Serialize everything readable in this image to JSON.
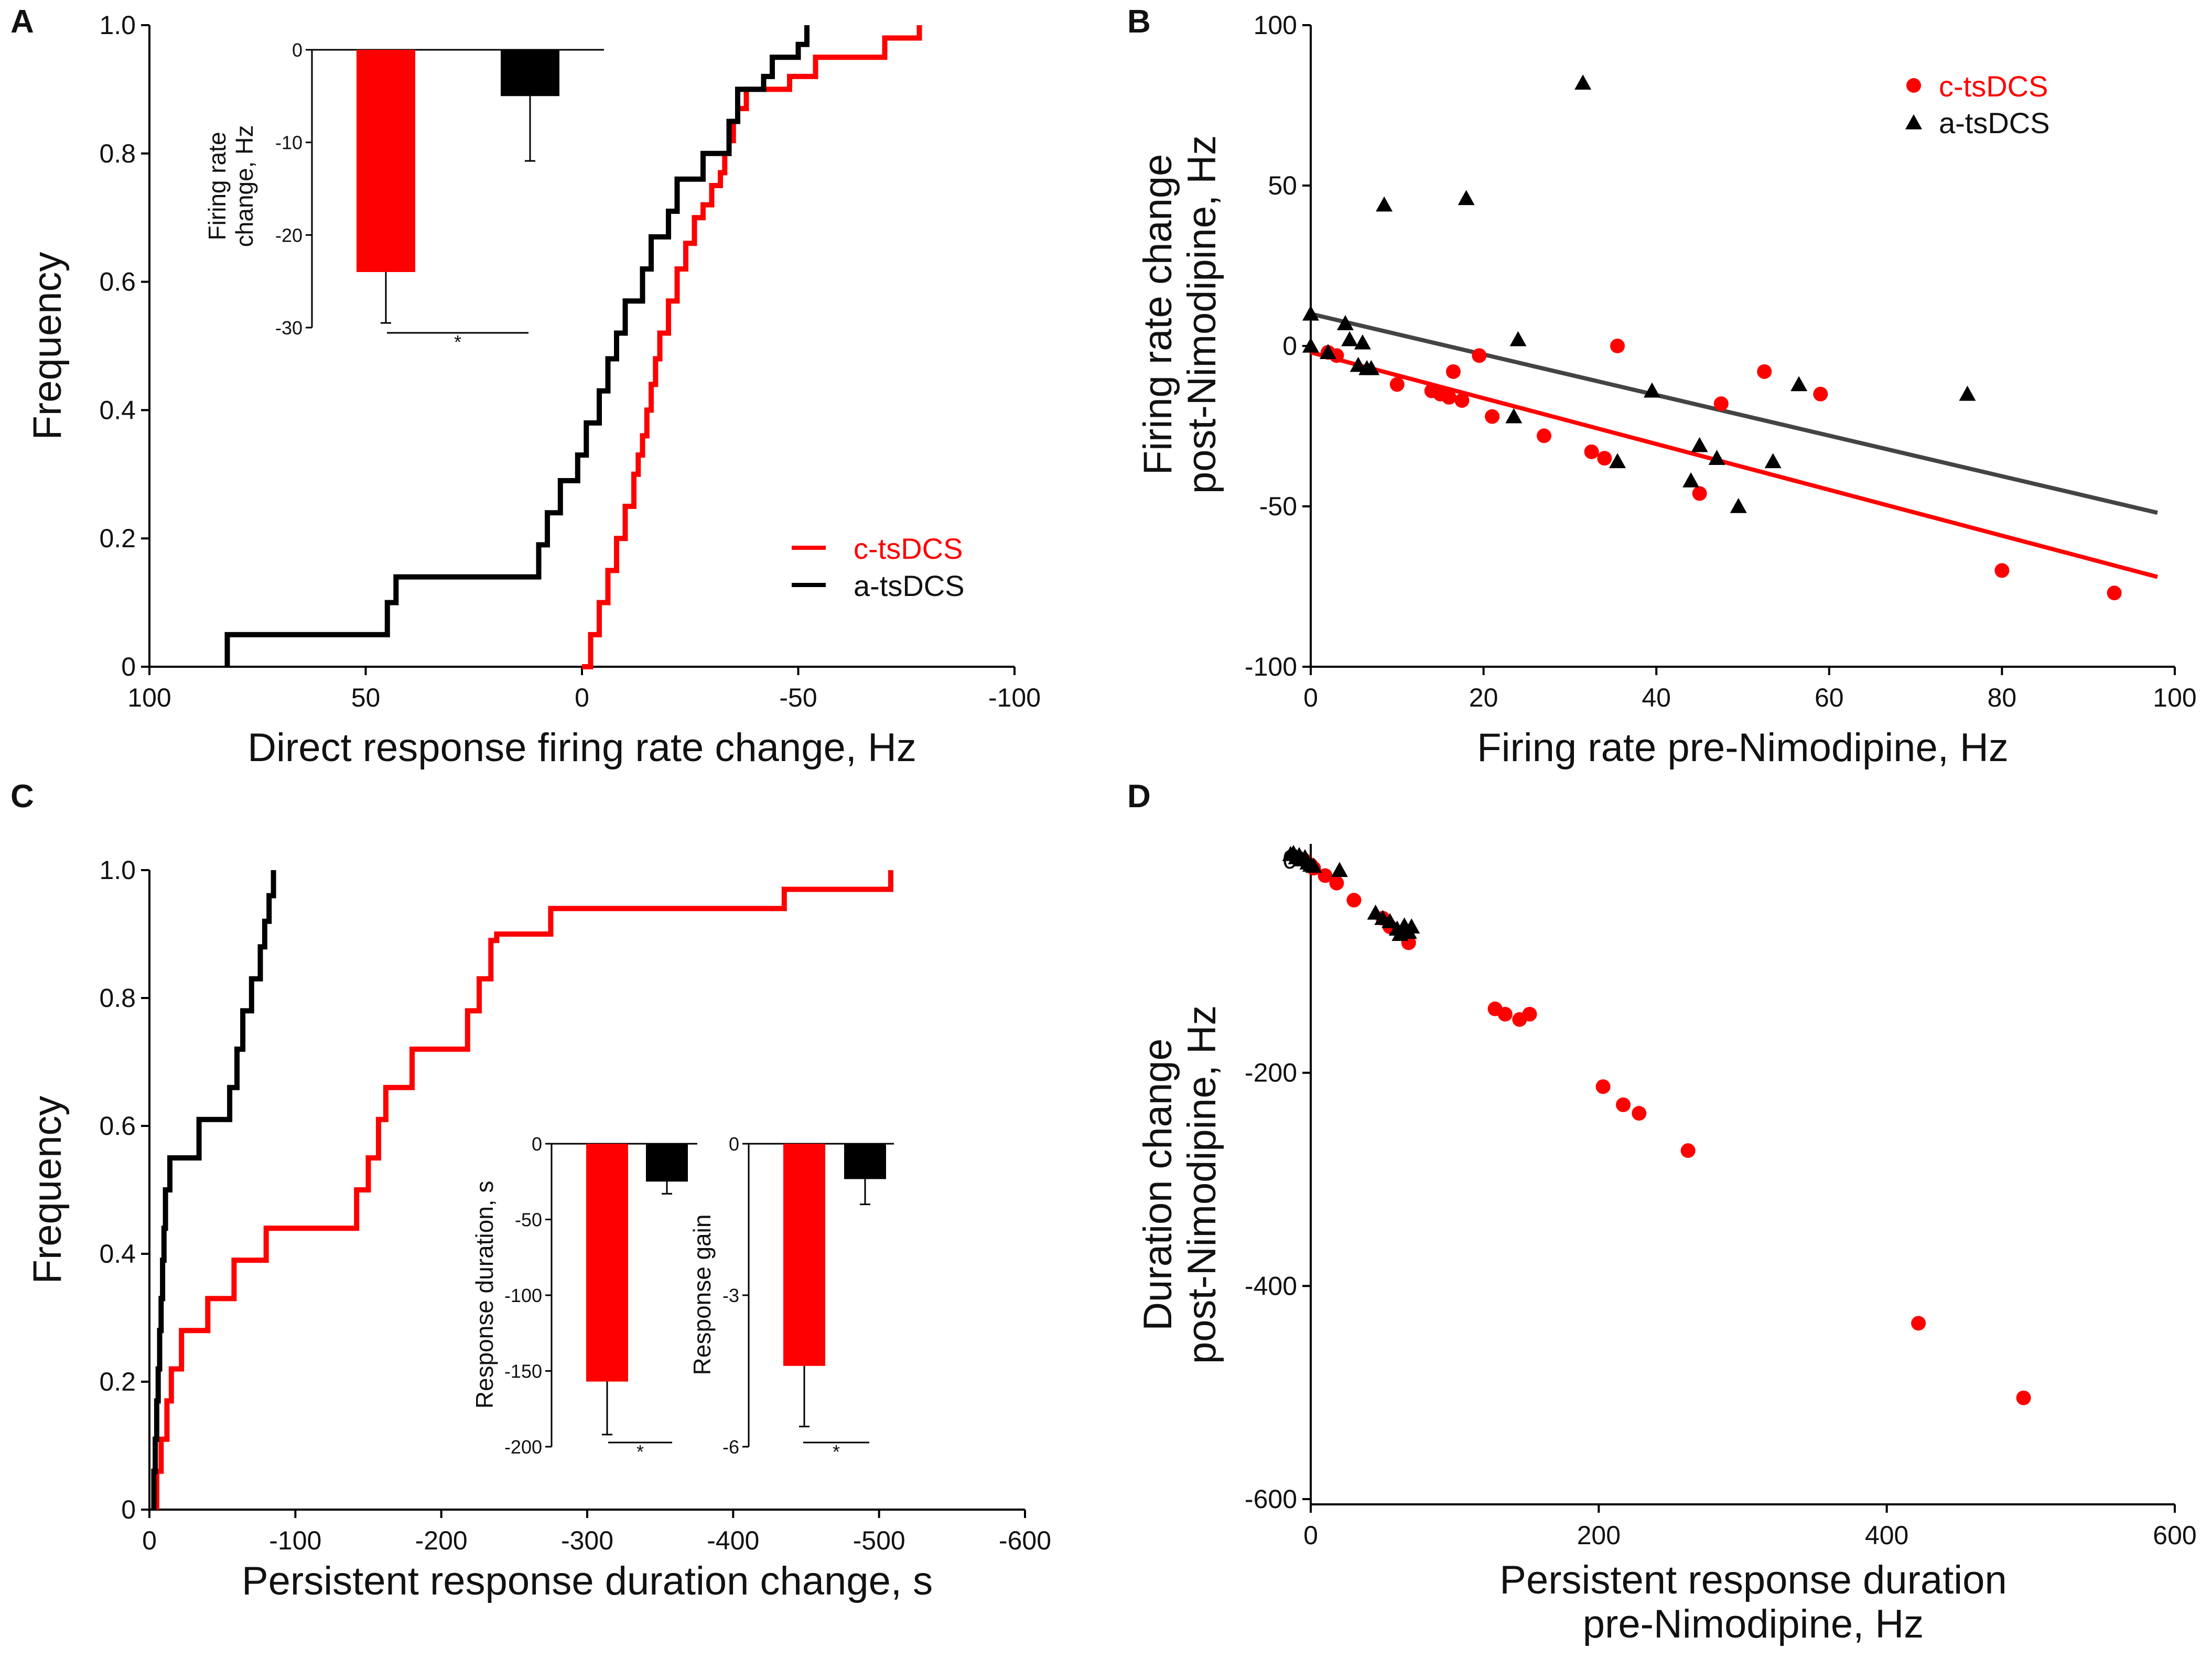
{
  "colors": {
    "c_tsdcs": "#ff0000",
    "a_tsdcs": "#000000",
    "a_tsdcs_fit": "#444444"
  },
  "chart_data": [
    {
      "panel": "A",
      "type": "line",
      "subtype": "cumulative step",
      "xlabel": "Direct response firing rate change, Hz",
      "ylabel": "Frequency",
      "xlim": [
        100,
        -100
      ],
      "ylim": [
        0,
        1.0
      ],
      "xticks": [
        "100",
        "50",
        "0",
        "-50",
        "-100"
      ],
      "yticks": [
        "0",
        "0.2",
        "0.4",
        "0.6",
        "0.8",
        "1.0"
      ],
      "legend": [
        "c-tsDCS",
        "a-tsDCS"
      ],
      "series": [
        {
          "name": "c-tsDCS",
          "color": "#ff0000",
          "x": [
            0,
            -2,
            -4,
            -6,
            -8,
            -10,
            -12,
            -13,
            -14,
            -15,
            -16,
            -17,
            -18,
            -20,
            -22,
            -24,
            -26,
            -28,
            -30,
            -32,
            -33,
            -34,
            -35,
            -36,
            -38,
            -48,
            -54,
            -70,
            -78
          ],
          "y": [
            0,
            0.05,
            0.1,
            0.15,
            0.2,
            0.25,
            0.3,
            0.33,
            0.36,
            0.4,
            0.44,
            0.48,
            0.52,
            0.57,
            0.62,
            0.66,
            0.7,
            0.72,
            0.75,
            0.77,
            0.8,
            0.82,
            0.85,
            0.87,
            0.9,
            0.92,
            0.95,
            0.98,
            1.0
          ]
        },
        {
          "name": "a-tsDCS",
          "color": "#000000",
          "x": [
            82,
            45,
            43,
            10,
            8,
            5,
            1,
            -1,
            -4,
            -6,
            -8,
            -10,
            -14,
            -16,
            -20,
            -22,
            -28,
            -34,
            -36,
            -42,
            -44,
            -50,
            -52
          ],
          "y": [
            0.05,
            0.1,
            0.14,
            0.19,
            0.24,
            0.29,
            0.33,
            0.38,
            0.43,
            0.48,
            0.52,
            0.57,
            0.62,
            0.67,
            0.71,
            0.76,
            0.8,
            0.85,
            0.9,
            0.92,
            0.95,
            0.97,
            1.0
          ]
        }
      ],
      "inset": {
        "type": "bar",
        "ylabel": "Firing rate\nchange, Hz",
        "ylim": [
          -30,
          0
        ],
        "yticks": [
          "0",
          "-10",
          "-20",
          "-30"
        ],
        "categories": [
          "c-tsDCS",
          "a-tsDCS"
        ],
        "values": [
          -24,
          -5
        ],
        "errors": [
          5.5,
          7
        ],
        "significance": "*"
      }
    },
    {
      "panel": "B",
      "type": "scatter",
      "xlabel": "Firing rate pre-Nimodipine, Hz",
      "ylabel": "Firing rate change\npost-Nimodipine, Hz",
      "xlim": [
        0,
        100
      ],
      "ylim": [
        -100,
        100
      ],
      "xticks": [
        "0",
        "20",
        "40",
        "60",
        "80",
        "100"
      ],
      "yticks": [
        "-100",
        "-50",
        "0",
        "50",
        "100"
      ],
      "legend": [
        "c-tsDCS",
        "a-tsDCS"
      ],
      "series": [
        {
          "name": "c-tsDCS",
          "marker": "circle",
          "color": "#ff0000",
          "x": [
            2,
            3,
            10,
            14,
            15,
            16,
            16.5,
            17.5,
            19.5,
            21,
            27,
            32.5,
            34,
            35.5,
            45,
            47.5,
            52.5,
            59,
            80,
            93
          ],
          "y": [
            -2,
            -3,
            -12,
            -14,
            -15,
            -16,
            -8,
            -17,
            -3,
            -22,
            -28,
            -33,
            -35,
            0,
            -46,
            -18,
            -8,
            -15,
            -70,
            -77
          ],
          "fit": {
            "x": [
              0,
              98
            ],
            "y": [
              -2,
              -72
            ]
          }
        },
        {
          "name": "a-tsDCS",
          "marker": "triangle",
          "color": "#000000",
          "x": [
            0,
            0,
            2,
            4,
            4.5,
            5.5,
            6,
            6.5,
            7,
            8.5,
            18,
            23.5,
            24,
            31.5,
            35.5,
            39.5,
            44,
            45,
            47,
            49.5,
            53.5,
            56.5,
            76
          ],
          "y": [
            10,
            0,
            -2,
            7,
            2,
            -6,
            1,
            -7,
            -7,
            44,
            46,
            -22,
            2,
            82,
            -36,
            -14,
            -42,
            -31,
            -35,
            -50,
            -36,
            -12,
            -15
          ],
          "fit": {
            "x": [
              0,
              98
            ],
            "y": [
              10,
              -52
            ]
          }
        }
      ]
    },
    {
      "panel": "C",
      "type": "line",
      "subtype": "cumulative step",
      "xlabel": "Persistent response duration change, s",
      "ylabel": "Frequency",
      "xlim": [
        0,
        -600
      ],
      "ylim": [
        0,
        1.0
      ],
      "xticks": [
        "0",
        "-100",
        "-200",
        "-300",
        "-400",
        "-500",
        "-600"
      ],
      "yticks": [
        "0",
        "0.2",
        "0.4",
        "0.6",
        "0.8",
        "1.0"
      ],
      "series": [
        {
          "name": "c-tsDCS",
          "color": "#ff0000",
          "x": [
            -5,
            -8,
            -12,
            -15,
            -22,
            -40,
            -58,
            -80,
            -142,
            -150,
            -157,
            -162,
            -180,
            -218,
            -226,
            -234,
            -238,
            -275,
            -435,
            -508
          ],
          "y": [
            0.06,
            0.11,
            0.17,
            0.22,
            0.28,
            0.33,
            0.39,
            0.44,
            0.5,
            0.55,
            0.61,
            0.66,
            0.72,
            0.78,
            0.83,
            0.89,
            0.9,
            0.94,
            0.97,
            1.0
          ]
        },
        {
          "name": "a-tsDCS",
          "color": "#000000",
          "x": [
            -3,
            -4,
            -5,
            -6,
            -7,
            -8,
            -9,
            -10,
            -11,
            -14,
            -34,
            -55,
            -60,
            -64,
            -70,
            -76,
            -79,
            -82,
            -85
          ],
          "y": [
            0.06,
            0.11,
            0.17,
            0.22,
            0.28,
            0.33,
            0.39,
            0.44,
            0.5,
            0.55,
            0.61,
            0.66,
            0.72,
            0.78,
            0.83,
            0.88,
            0.92,
            0.96,
            1.0
          ]
        }
      ],
      "insets": [
        {
          "type": "bar",
          "ylabel": "Response duration, s",
          "ylim": [
            -200,
            0
          ],
          "yticks": [
            "0",
            "-50",
            "-100",
            "-150",
            "-200"
          ],
          "categories": [
            "c-tsDCS",
            "a-tsDCS"
          ],
          "values": [
            -157,
            -25
          ],
          "errors": [
            35,
            8
          ],
          "significance": "*"
        },
        {
          "type": "bar",
          "ylabel": "Response gain",
          "ylim": [
            -6,
            0
          ],
          "yticks": [
            "0",
            "-3",
            "-6"
          ],
          "categories": [
            "c-tsDCS",
            "a-tsDCS"
          ],
          "values": [
            -4.4,
            -0.7
          ],
          "errors": [
            1.2,
            0.5
          ],
          "significance": "*"
        }
      ]
    },
    {
      "panel": "D",
      "type": "scatter",
      "xlabel": "Persistent response duration\npre-Nimodipine, Hz",
      "ylabel": "Duration change\npost-Nimodipine, Hz",
      "xlim": [
        0,
        600
      ],
      "ylim": [
        -600,
        0
      ],
      "xticks": [
        "0",
        "200",
        "400",
        "600"
      ],
      "yticks": [
        "-600",
        "-400",
        "-200",
        "0"
      ],
      "series": [
        {
          "name": "c-tsDCS",
          "marker": "circle",
          "color": "#ff0000",
          "x": [
            -5,
            0,
            2,
            10,
            18,
            30,
            50,
            55,
            68,
            128,
            135,
            145,
            152,
            203,
            217,
            228,
            262,
            422,
            495
          ],
          "y": [
            0,
            -5,
            -8,
            -15,
            -22,
            -38,
            -55,
            -63,
            -78,
            -140,
            -145,
            -150,
            -145,
            -213,
            -230,
            -238,
            -273,
            -435,
            -505
          ]
        },
        {
          "name": "a-tsDCS",
          "marker": "triangle",
          "color": "#000000",
          "x": [
            -14,
            -12,
            -10,
            -8,
            -6,
            -4,
            -2,
            0,
            2,
            20,
            45,
            50,
            55,
            60,
            62,
            65,
            68,
            70
          ],
          "y": [
            5,
            6,
            2,
            4,
            0,
            2,
            -3,
            -5,
            -6,
            -10,
            -50,
            -55,
            -58,
            -65,
            -70,
            -62,
            -68,
            -63
          ]
        }
      ]
    }
  ]
}
